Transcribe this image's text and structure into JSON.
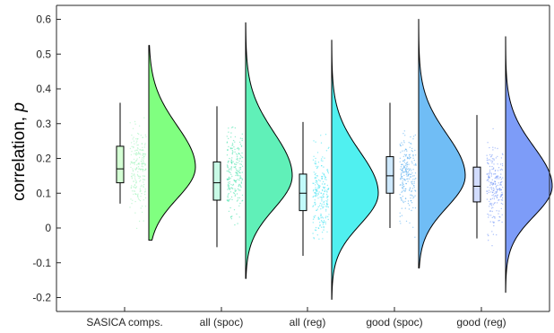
{
  "chart_data": {
    "type": "raincloud",
    "title": "",
    "xlabel": "",
    "ylabel": "correlation, p",
    "ylabel_parts": {
      "text": "correlation, ",
      "symbol": "p"
    },
    "ylim": [
      -0.24,
      0.64
    ],
    "yticks": [
      -0.2,
      -0.1,
      0,
      0.1,
      0.2,
      0.3,
      0.4,
      0.5,
      0.6
    ],
    "ytick_labels": [
      "-0.2",
      "-0.1",
      "0",
      "0.1",
      "0.2",
      "0.3",
      "0.4",
      "0.5",
      "0.6"
    ],
    "grid": false,
    "legend": "none",
    "categories": [
      "SASICA comps.",
      "all (spoc)",
      "all (reg)",
      "good (spoc)",
      "good (reg)"
    ],
    "series": [
      {
        "box": {
          "whisker_low": 0.07,
          "q1": 0.13,
          "median": 0.17,
          "q3": 0.235,
          "whisker_high": 0.36
        },
        "range": [
          -0.035,
          0.525
        ],
        "mode": 0.175,
        "color": "#80ff80",
        "points_color": "#9af2b8"
      },
      {
        "box": {
          "whisker_low": -0.055,
          "q1": 0.08,
          "median": 0.13,
          "q3": 0.19,
          "whisker_high": 0.35
        },
        "range": [
          -0.145,
          0.59
        ],
        "mode": 0.15,
        "color": "#60f0b8",
        "points_color": "#3ee0a8"
      },
      {
        "box": {
          "whisker_low": -0.08,
          "q1": 0.05,
          "median": 0.1,
          "q3": 0.155,
          "whisker_high": 0.305
        },
        "range": [
          -0.205,
          0.54
        ],
        "mode": 0.1,
        "color": "#50f0f0",
        "points_color": "#30e0f0"
      },
      {
        "box": {
          "whisker_low": 0.0,
          "q1": 0.1,
          "median": 0.15,
          "q3": 0.205,
          "whisker_high": 0.36
        },
        "range": [
          -0.115,
          0.6
        ],
        "mode": 0.15,
        "color": "#70bdf5",
        "points_color": "#4aa8ef"
      },
      {
        "box": {
          "whisker_low": -0.03,
          "q1": 0.075,
          "median": 0.12,
          "q3": 0.175,
          "whisker_high": 0.325
        },
        "range": [
          -0.185,
          0.55
        ],
        "mode": 0.12,
        "color": "#7d9cf8",
        "points_color": "#6a8ef5"
      }
    ]
  }
}
